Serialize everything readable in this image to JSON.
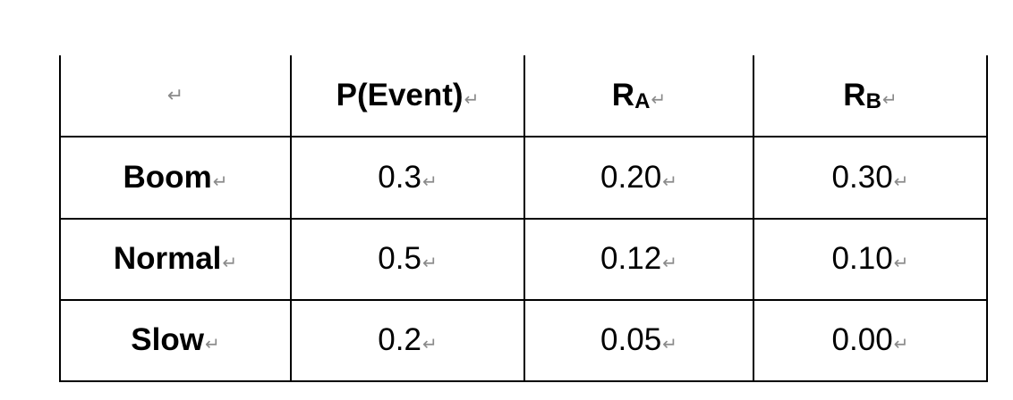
{
  "table": {
    "headers": [
      {
        "main": "",
        "sub": ""
      },
      {
        "main": "P(Event)",
        "sub": ""
      },
      {
        "main": "R",
        "sub": "A"
      },
      {
        "main": "R",
        "sub": "B"
      }
    ],
    "rows": [
      {
        "label": "Boom",
        "values": [
          "0.3",
          "0.20",
          "0.30"
        ]
      },
      {
        "label": "Normal",
        "values": [
          "0.5",
          "0.12",
          "0.10"
        ]
      },
      {
        "label": "Slow",
        "values": [
          "0.2",
          "0.05",
          "0.00"
        ]
      }
    ],
    "paragraph_mark": "↵"
  }
}
